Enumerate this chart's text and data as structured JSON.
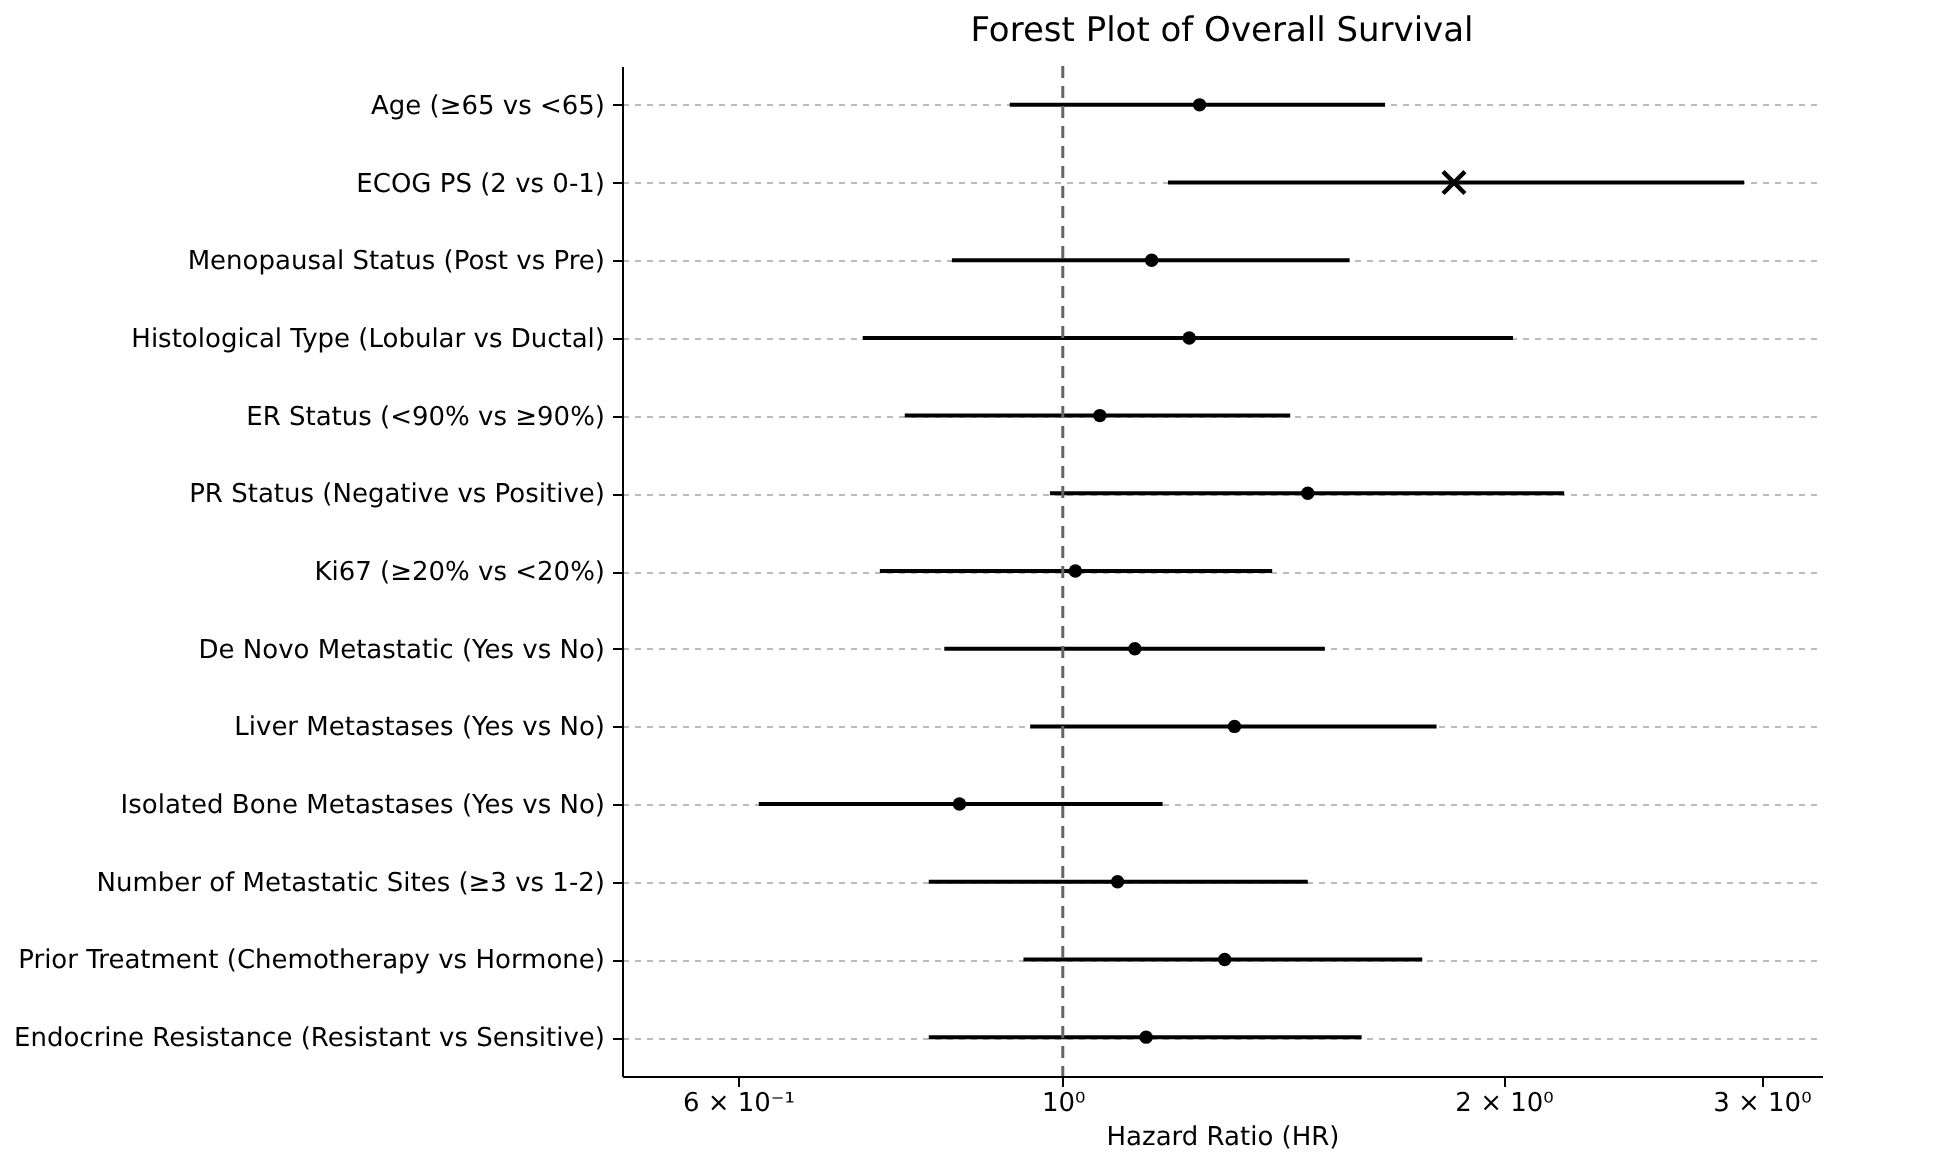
{
  "chart_data": {
    "type": "scatter",
    "orientation": "horizontal",
    "title": "Forest Plot of Overall Survival",
    "xlabel": "Hazard Ratio (HR)",
    "log": "x",
    "grid": "y",
    "categories": [
      "Age (≥65 vs <65)",
      "ECOG PS (2 vs 0-1)",
      "Menopausal Status (Post vs Pre)",
      "Histological Type (Lobular vs Ductal)",
      "ER Status (<90% vs ≥90%)",
      "PR Status (Negative vs Positive)",
      "Ki67 (≥20% vs <20%)",
      "De Novo Metastatic (Yes vs No)",
      "Liver Metastases (Yes vs No)",
      "Isolated Bone Metastases (Yes vs No)",
      "Number of Metastatic Sites (≥3 vs 1-2)",
      "Prior Treatment (Chemotherapy vs Hormone)",
      "Endocrine Resistance (Resistant vs Sensitive)"
    ],
    "series": [
      {
        "color": "#000000",
        "marker": "circle",
        "values": [
          1.24,
          null,
          1.15,
          1.22,
          1.06,
          1.47,
          1.02,
          1.12,
          1.31,
          0.85,
          1.09,
          1.29,
          1.14
        ],
        "errors": [
          [
            0.92,
            1.66
          ],
          null,
          [
            0.84,
            1.57
          ],
          [
            0.73,
            2.03
          ],
          [
            0.78,
            1.43
          ],
          [
            0.98,
            2.2
          ],
          [
            0.75,
            1.39
          ],
          [
            0.83,
            1.51
          ],
          [
            0.95,
            1.8
          ],
          [
            0.62,
            1.17
          ],
          [
            0.81,
            1.47
          ],
          [
            0.94,
            1.76
          ],
          [
            0.81,
            1.6
          ]
        ]
      },
      {
        "color": "#000000",
        "marker": "cross",
        "values": [
          null,
          1.85,
          null,
          null,
          null,
          null,
          null,
          null,
          null,
          null,
          null,
          null,
          null
        ],
        "errors": [
          null,
          [
            1.18,
            2.92
          ],
          null,
          null,
          null,
          null,
          null,
          null,
          null,
          null,
          null,
          null,
          null
        ]
      }
    ],
    "xlim": [
      0.5,
      3.3
    ],
    "xticks": [
      {
        "value": 0.6,
        "label": "6 × 10⁻¹"
      },
      {
        "value": 1,
        "label": "10⁰"
      },
      {
        "value": 2,
        "label": "2 × 10⁰"
      },
      {
        "value": 3,
        "label": "3 × 10⁰"
      }
    ],
    "ref_lines": [
      {
        "axis": "x",
        "value": 1,
        "color": "#666666",
        "line_style": "dashed"
      }
    ]
  }
}
